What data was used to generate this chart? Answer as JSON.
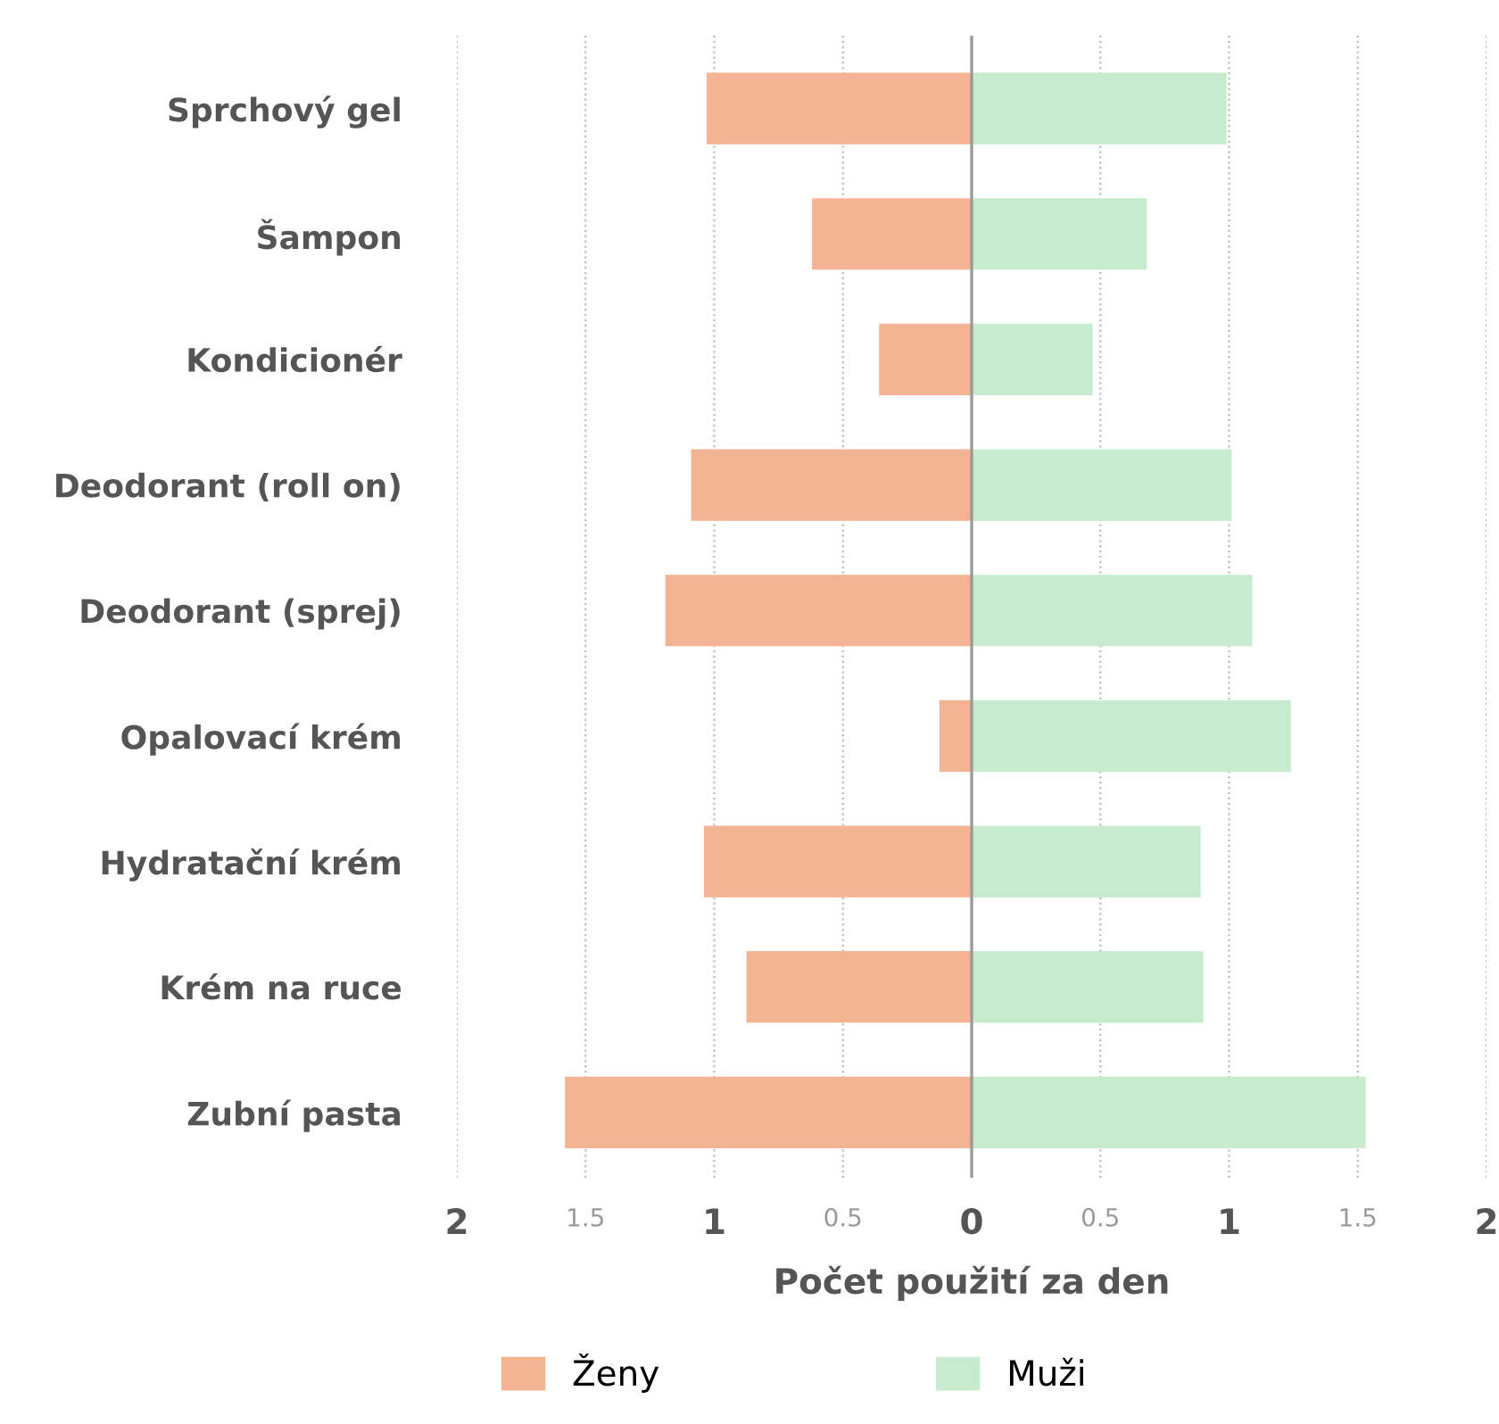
{
  "chart_data": {
    "type": "bar",
    "orientation": "horizontal",
    "stacked": true,
    "categories": [
      "Sprchový gel",
      "Šampon",
      "Kondicionér",
      "Deodorant (roll on)",
      "Deodorant (sprej)",
      "Opalovací krém",
      "Hydratační krém",
      "Krém na ruce",
      "Zubní pasta"
    ],
    "series": [
      {
        "name": "Ženy",
        "color": "#f4b493",
        "values": [
          -1.03,
          -0.62,
          -0.36,
          -1.09,
          -1.19,
          -0.125,
          -1.04,
          -0.875,
          -1.58
        ]
      },
      {
        "name": "Muži",
        "color": "#c6ebcf",
        "values": [
          0.99,
          0.68,
          0.47,
          1.01,
          1.09,
          1.24,
          0.89,
          0.9,
          1.53
        ]
      }
    ],
    "xlabel": "Počet použití za den",
    "xlim": [
      -2,
      2
    ],
    "xticks": [
      {
        "value": -2,
        "label": "2"
      },
      {
        "value": -1.5,
        "label": "1.5"
      },
      {
        "value": -1,
        "label": "1"
      },
      {
        "value": -0.5,
        "label": "0.5"
      },
      0,
      0.5,
      1,
      1.5,
      2
    ],
    "ref_lines": [
      {
        "axis": "x",
        "value": 0,
        "color": "#9a9a9a"
      }
    ],
    "grid": "x",
    "legend": "bottom"
  }
}
